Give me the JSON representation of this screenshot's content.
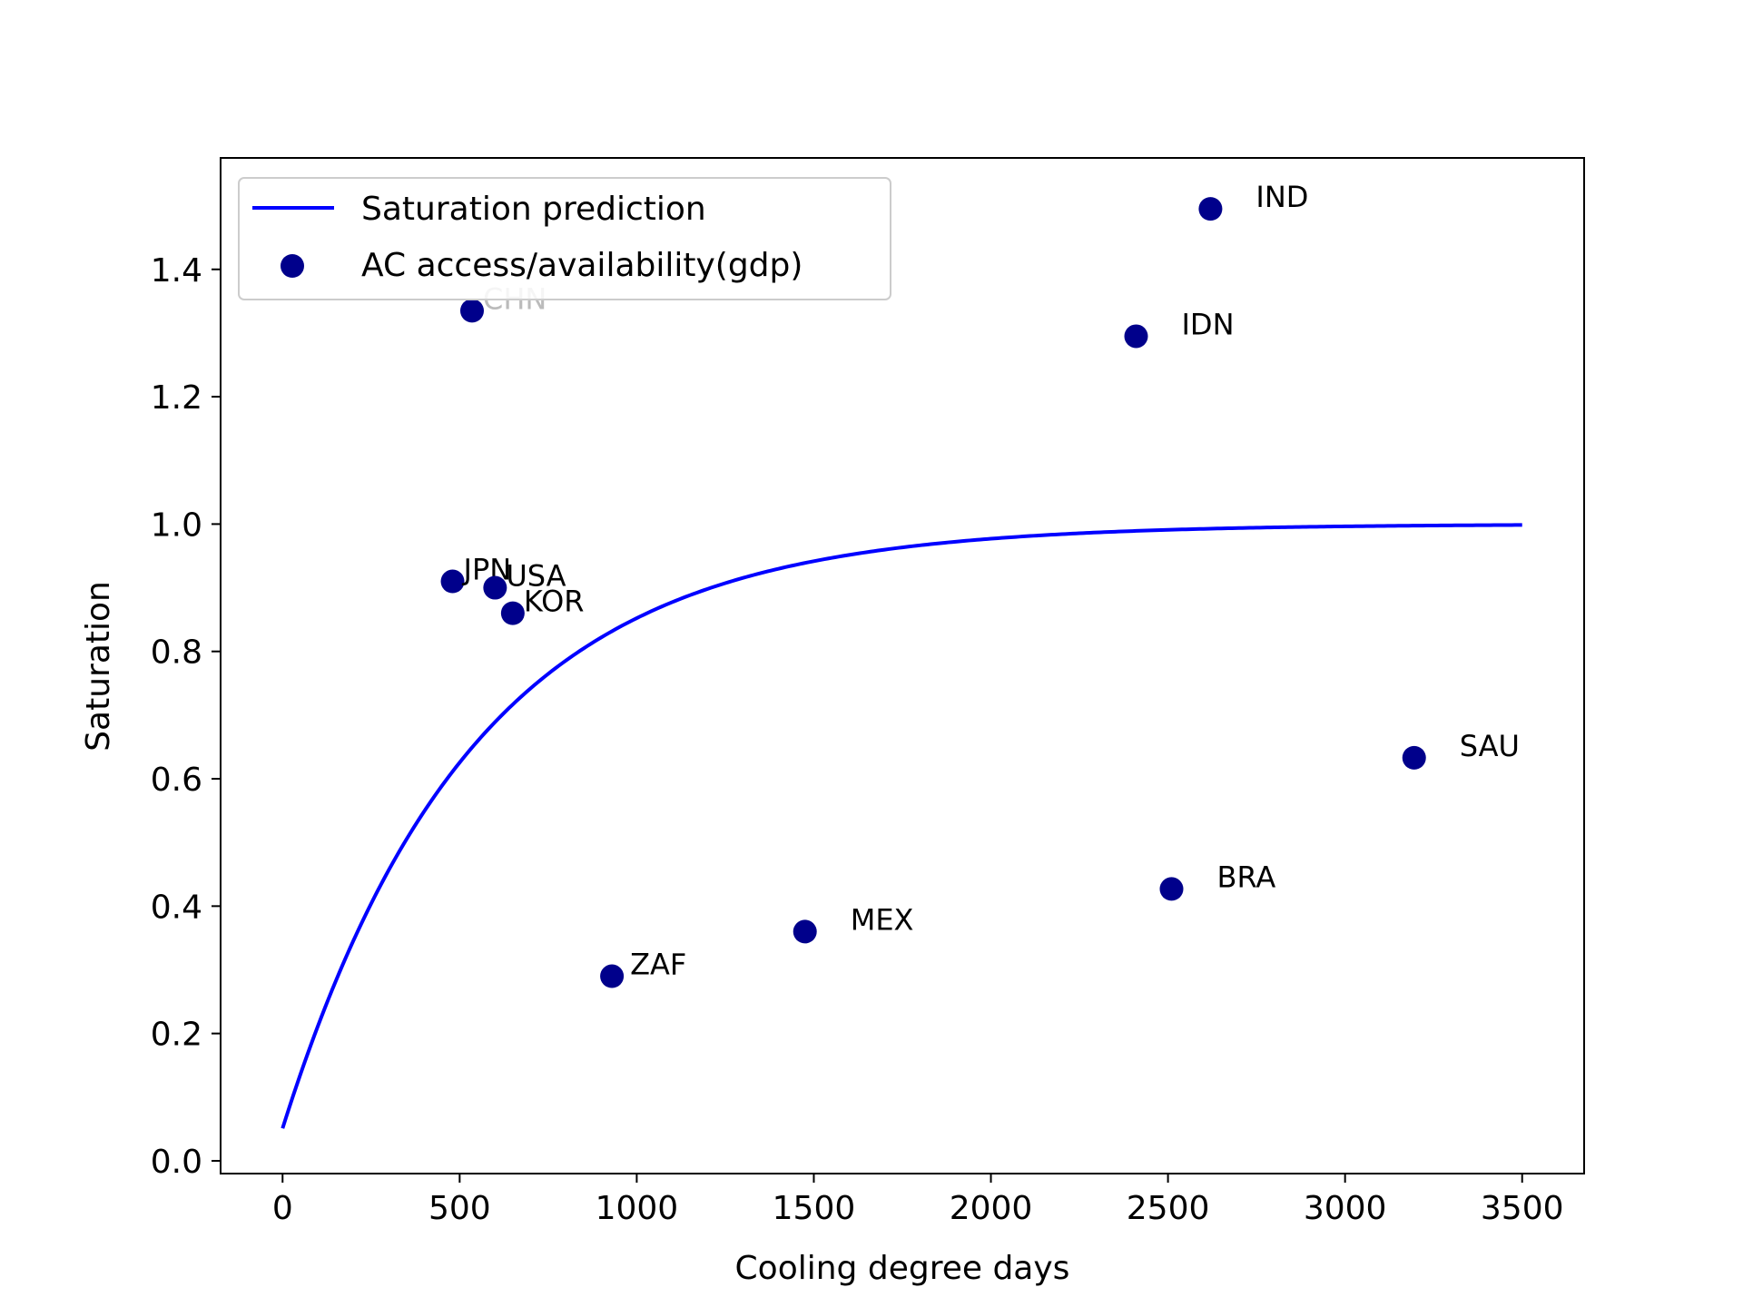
{
  "chart_data": {
    "type": "scatter",
    "title": "",
    "xlabel": "Cooling degree days",
    "ylabel": "Saturation",
    "xlim": [
      -175,
      3675
    ],
    "ylim": [
      -0.02,
      1.575
    ],
    "xticks": [
      0,
      500,
      1000,
      1500,
      2000,
      2500,
      3000,
      3500
    ],
    "yticks": [
      0.0,
      0.2,
      0.4,
      0.6,
      0.8,
      1.0,
      1.2,
      1.4
    ],
    "xtick_labels": [
      "0",
      "500",
      "1000",
      "1500",
      "2000",
      "2500",
      "3000",
      "3500"
    ],
    "ytick_labels": [
      "0.0",
      "0.2",
      "0.4",
      "0.6",
      "0.8",
      "1.0",
      "1.2",
      "1.4"
    ],
    "grid": false,
    "legend_position": "top-left",
    "series": [
      {
        "name": "Saturation prediction",
        "kind": "line",
        "color": "#0000ff",
        "formula": "1 - 0.949*exp(-0.00186*x)",
        "x_range": [
          0,
          3500
        ]
      },
      {
        "name": "AC access/availability(gdp)",
        "kind": "scatter",
        "color": "#00008b",
        "points": [
          {
            "label": "IND",
            "x": 2620,
            "y": 1.495
          },
          {
            "label": "IDN",
            "x": 2410,
            "y": 1.295
          },
          {
            "label": "CHN",
            "x": 535,
            "y": 1.335
          },
          {
            "label": "JPN",
            "x": 480,
            "y": 0.91
          },
          {
            "label": "USA",
            "x": 600,
            "y": 0.9
          },
          {
            "label": "KOR",
            "x": 650,
            "y": 0.86
          },
          {
            "label": "SAU",
            "x": 3195,
            "y": 0.633
          },
          {
            "label": "BRA",
            "x": 2510,
            "y": 0.427
          },
          {
            "label": "MEX",
            "x": 1475,
            "y": 0.36
          },
          {
            "label": "ZAF",
            "x": 930,
            "y": 0.29
          }
        ]
      }
    ]
  }
}
